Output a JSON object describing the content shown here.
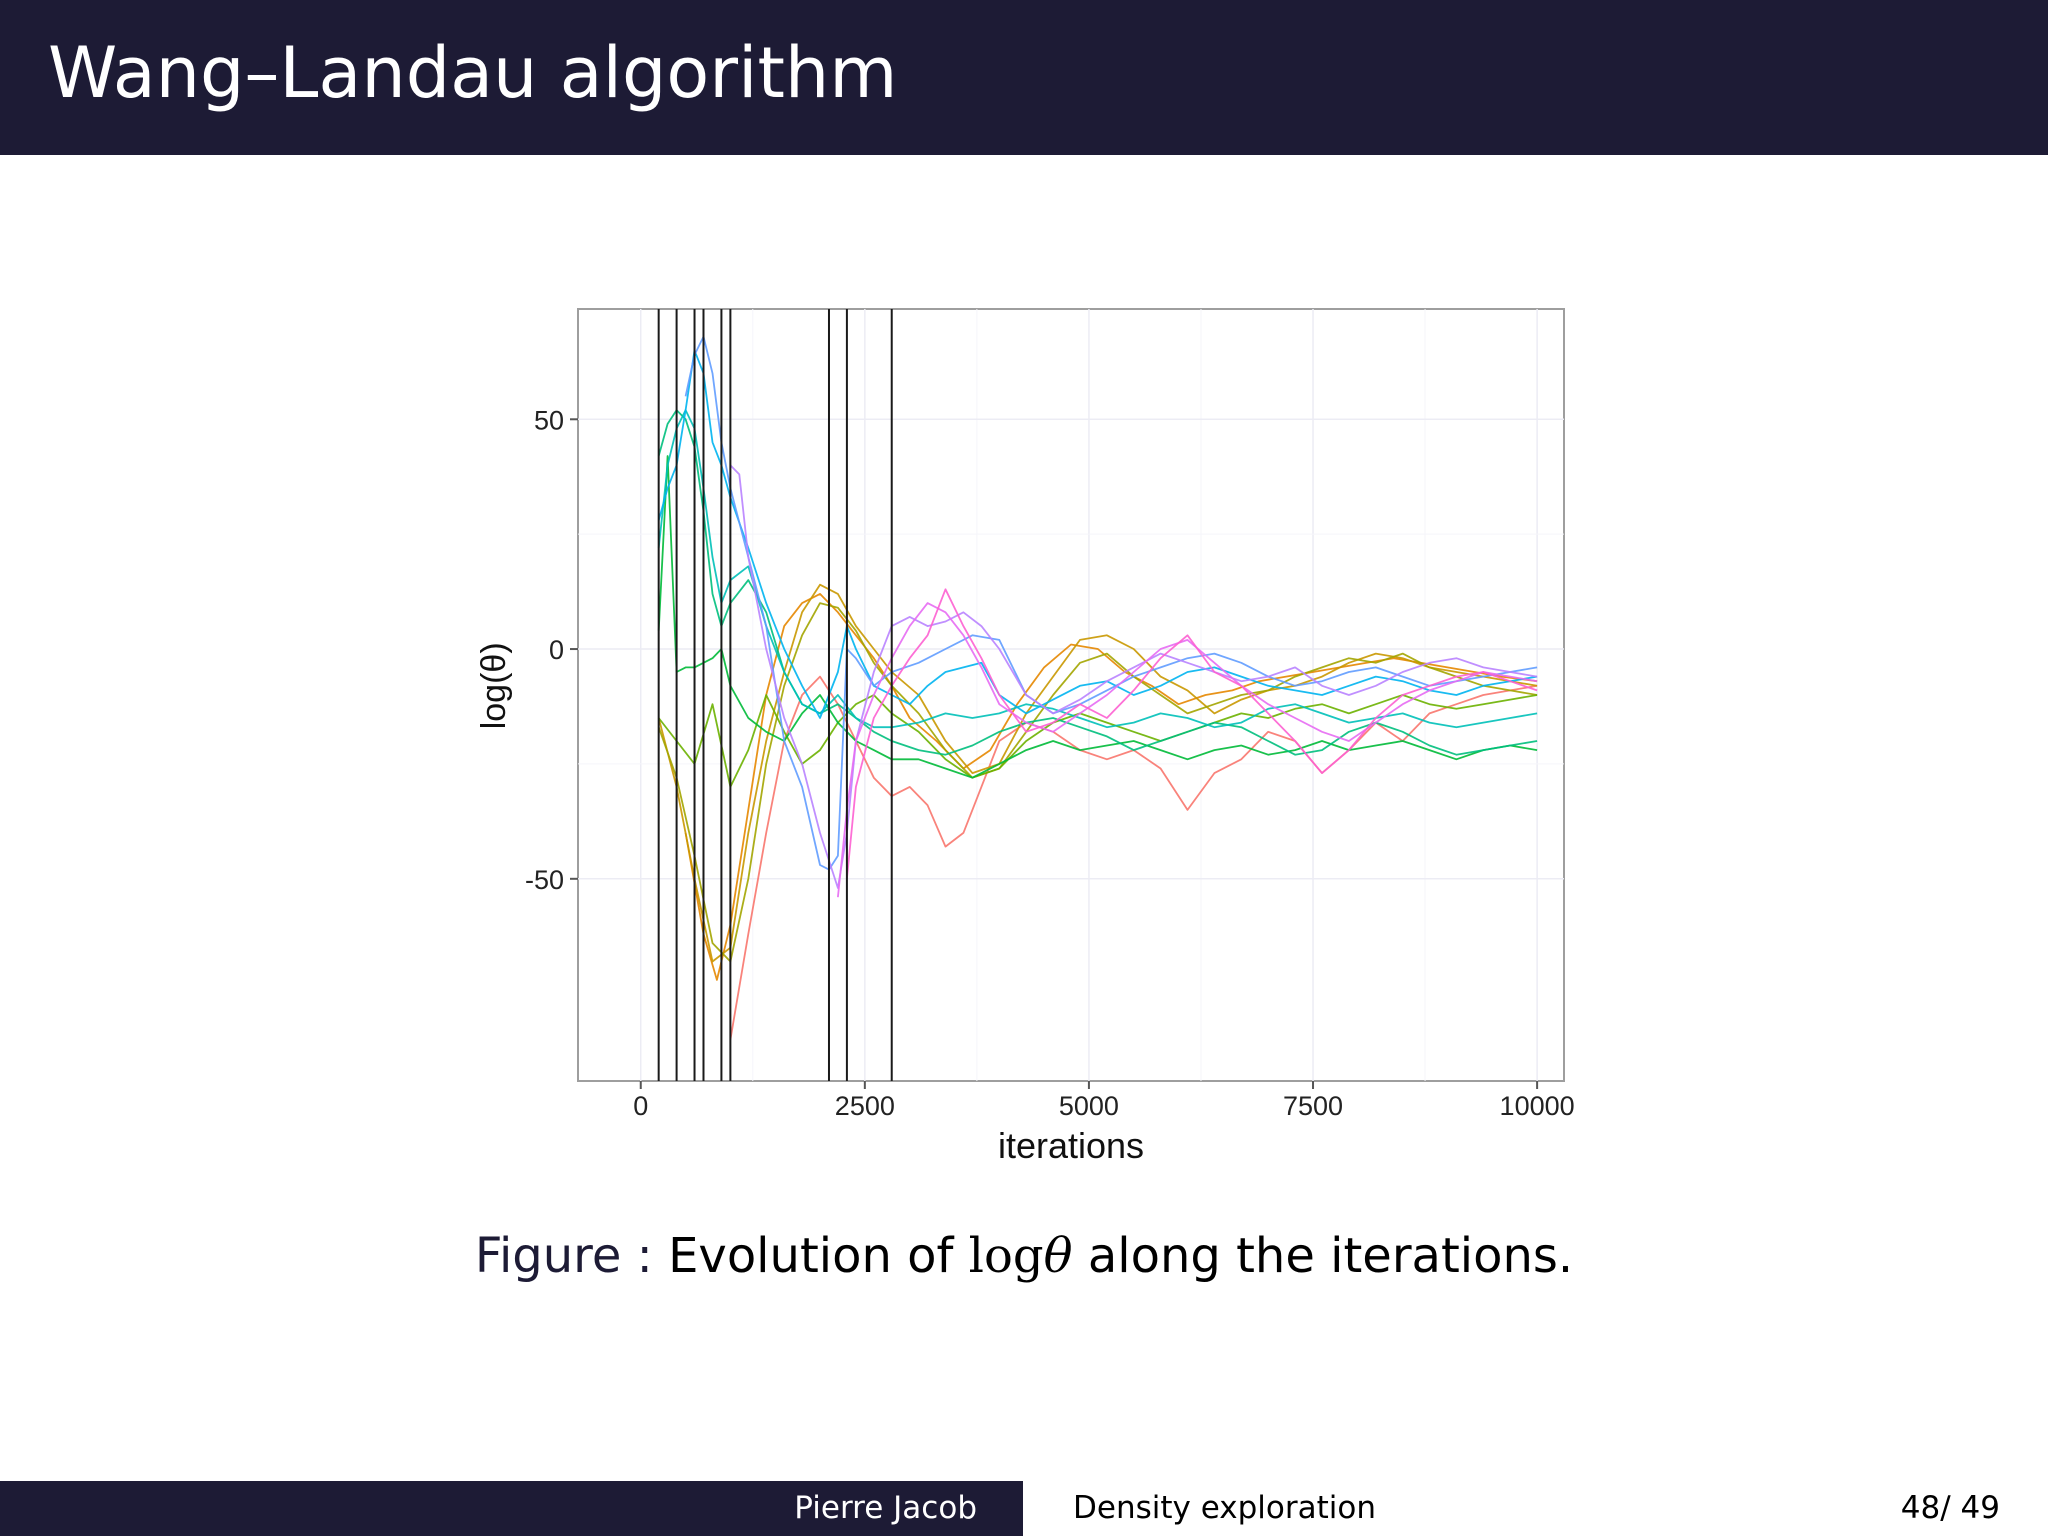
{
  "slide": {
    "title": "Wang–Landau algorithm"
  },
  "caption": {
    "label": "Figure :",
    "text_before": "Evolution of",
    "math_log": "log",
    "math_var": "θ",
    "text_after": "along the iterations."
  },
  "footer": {
    "author": "Pierre Jacob",
    "talk_title": "Density exploration",
    "page_current": "48",
    "page_total": "/ 49"
  },
  "chart_data": {
    "type": "line",
    "xlabel": "iterations",
    "ylabel": "log(θ)",
    "xlim": [
      -700,
      10300
    ],
    "ylim": [
      -94,
      74
    ],
    "xticks": [
      0,
      2500,
      5000,
      7500,
      10000
    ],
    "xtick_labels": [
      "0",
      "2500",
      "5000",
      "7500",
      "10000"
    ],
    "yticks": [
      50,
      0,
      -50
    ],
    "ytick_labels": [
      "50",
      "0",
      "-50"
    ],
    "grid": true,
    "legend": "none",
    "vertical_lines_x": [
      200,
      400,
      600,
      700,
      900,
      1000,
      2100,
      2300,
      2800
    ],
    "series": [
      {
        "color": "#f8766d",
        "x": [
          1000,
          1200,
          1400,
          1600,
          1800,
          2000,
          2200,
          2400,
          2600,
          2800,
          3000,
          3200,
          3400,
          3600,
          3800,
          4000,
          4300,
          4600,
          4900,
          5200,
          5500,
          5800,
          6100,
          6400,
          6700,
          7000,
          7300,
          7600,
          7900,
          8200,
          8500,
          8800,
          9100,
          9400,
          9700,
          10000
        ],
        "y": [
          -85,
          -62,
          -40,
          -20,
          -10,
          -6,
          -12,
          -20,
          -28,
          -32,
          -30,
          -34,
          -43,
          -40,
          -30,
          -20,
          -16,
          -18,
          -22,
          -24,
          -22,
          -26,
          -35,
          -27,
          -24,
          -18,
          -20,
          -27,
          -22,
          -16,
          -20,
          -14,
          -12,
          -10,
          -9,
          -8
        ]
      },
      {
        "color": "#e58700",
        "x": [
          500,
          700,
          850,
          1000,
          1200,
          1400,
          1600,
          1800,
          2000,
          2200,
          2400,
          2600,
          2800,
          3000,
          3300,
          3600,
          3900,
          4200,
          4500,
          4800,
          5100,
          5400,
          5700,
          6000,
          6300,
          6600,
          6900,
          7200,
          7500,
          7800,
          8100,
          8400,
          8700,
          9000,
          9300,
          9600,
          10000
        ],
        "y": [
          -40,
          -62,
          -72,
          -60,
          -35,
          -10,
          5,
          10,
          12,
          8,
          3,
          -2,
          -8,
          -15,
          -20,
          -26,
          -22,
          -12,
          -4,
          1,
          0,
          -5,
          -8,
          -12,
          -10,
          -9,
          -7,
          -6,
          -5,
          -4,
          -3,
          -2,
          -3,
          -4,
          -5,
          -6,
          -7
        ]
      },
      {
        "color": "#c99800",
        "x": [
          200,
          400,
          600,
          800,
          1000,
          1200,
          1400,
          1600,
          1800,
          2000,
          2200,
          2400,
          2600,
          2800,
          3100,
          3400,
          3700,
          4000,
          4300,
          4600,
          4900,
          5200,
          5500,
          5800,
          6100,
          6400,
          6700,
          7000,
          7300,
          7600,
          7900,
          8200,
          8500,
          8800,
          9100,
          9400,
          9700,
          10000
        ],
        "y": [
          -15,
          -30,
          -50,
          -68,
          -65,
          -40,
          -20,
          -5,
          8,
          14,
          12,
          5,
          0,
          -5,
          -10,
          -20,
          -27,
          -25,
          -14,
          -6,
          2,
          3,
          0,
          -6,
          -9,
          -14,
          -11,
          -9,
          -8,
          -6,
          -3,
          -1,
          -2,
          -4,
          -5,
          -6,
          -7,
          -8
        ]
      },
      {
        "color": "#a3a500",
        "x": [
          200,
          400,
          600,
          800,
          1000,
          1200,
          1400,
          1600,
          1800,
          2000,
          2200,
          2400,
          2600,
          2800,
          3100,
          3400,
          3700,
          4000,
          4300,
          4600,
          4900,
          5200,
          5500,
          5800,
          6100,
          6400,
          6700,
          7000,
          7300,
          7600,
          7900,
          8200,
          8500,
          8800,
          9100,
          9400,
          9700,
          10000
        ],
        "y": [
          -17,
          -28,
          -45,
          -64,
          -68,
          -50,
          -25,
          -8,
          3,
          10,
          9,
          4,
          -3,
          -8,
          -14,
          -22,
          -28,
          -26,
          -18,
          -10,
          -3,
          -1,
          -6,
          -10,
          -14,
          -12,
          -10,
          -9,
          -6,
          -4,
          -2,
          -3,
          -1,
          -4,
          -6,
          -8,
          -9,
          -10
        ]
      },
      {
        "color": "#6bb100",
        "x": [
          200,
          400,
          600,
          800,
          1000,
          1200,
          1400,
          1600,
          1800,
          2000,
          2200,
          2400,
          2600,
          2800,
          3100,
          3400,
          3700,
          4000,
          4300,
          4600,
          4900,
          5200,
          5500,
          5800,
          6100,
          6400,
          6700,
          7000,
          7300,
          7600,
          7900,
          8200,
          8500,
          8800,
          9100,
          9400,
          9700,
          10000
        ],
        "y": [
          -15,
          -20,
          -25,
          -12,
          -30,
          -22,
          -10,
          -18,
          -25,
          -22,
          -16,
          -12,
          -10,
          -14,
          -18,
          -24,
          -28,
          -26,
          -20,
          -16,
          -14,
          -16,
          -18,
          -20,
          -18,
          -16,
          -14,
          -15,
          -13,
          -12,
          -14,
          -12,
          -10,
          -12,
          -13,
          -12,
          -11,
          -10
        ]
      },
      {
        "color": "#00ba38",
        "x": [
          200,
          300,
          400,
          500,
          600,
          700,
          800,
          900,
          1000,
          1200,
          1400,
          1600,
          1800,
          2000,
          2200,
          2400,
          2600,
          2800,
          3100,
          3400,
          3700,
          4000,
          4300,
          4600,
          4900,
          5200,
          5500,
          5800,
          6100,
          6400,
          6700,
          7000,
          7300,
          7600,
          7900,
          8200,
          8500,
          8800,
          9100,
          9400,
          9700,
          10000
        ],
        "y": [
          4,
          42,
          -5,
          -4,
          -4,
          -3,
          -2,
          0,
          -8,
          -15,
          -18,
          -20,
          -14,
          -10,
          -16,
          -20,
          -22,
          -24,
          -24,
          -26,
          -28,
          -25,
          -22,
          -20,
          -22,
          -21,
          -20,
          -22,
          -24,
          -22,
          -21,
          -23,
          -22,
          -20,
          -22,
          -21,
          -20,
          -22,
          -24,
          -22,
          -21,
          -22
        ]
      },
      {
        "color": "#00bf7d",
        "x": [
          200,
          300,
          400,
          500,
          600,
          700,
          800,
          900,
          1000,
          1200,
          1400,
          1600,
          1800,
          2000,
          2200,
          2400,
          2600,
          2800,
          3100,
          3400,
          3700,
          4000,
          4300,
          4600,
          4900,
          5200,
          5500,
          5800,
          6100,
          6400,
          6700,
          7000,
          7300,
          7600,
          7900,
          8200,
          8500,
          8800,
          9100,
          9400,
          9700,
          10000
        ],
        "y": [
          42,
          49,
          52,
          50,
          44,
          30,
          12,
          5,
          10,
          15,
          8,
          -5,
          -12,
          -14,
          -12,
          -15,
          -18,
          -20,
          -22,
          -23,
          -21,
          -18,
          -16,
          -15,
          -17,
          -19,
          -22,
          -20,
          -18,
          -16,
          -17,
          -20,
          -23,
          -22,
          -18,
          -16,
          -18,
          -21,
          -23,
          -22,
          -21,
          -20
        ]
      },
      {
        "color": "#00c0b8",
        "x": [
          200,
          300,
          400,
          500,
          600,
          700,
          800,
          900,
          1000,
          1200,
          1400,
          1600,
          1800,
          2000,
          2200,
          2400,
          2600,
          2800,
          3100,
          3400,
          3700,
          4000,
          4300,
          4600,
          4900,
          5200,
          5500,
          5800,
          6100,
          6400,
          6700,
          7000,
          7300,
          7600,
          7900,
          8200,
          8500,
          8800,
          9100,
          9400,
          9700,
          10000
        ],
        "y": [
          22,
          40,
          48,
          52,
          48,
          35,
          20,
          10,
          15,
          18,
          5,
          -5,
          -12,
          -14,
          -10,
          -15,
          -17,
          -17,
          -16,
          -14,
          -15,
          -14,
          -12,
          -13,
          -15,
          -17,
          -16,
          -14,
          -15,
          -17,
          -16,
          -13,
          -12,
          -14,
          -16,
          -15,
          -14,
          -16,
          -17,
          -16,
          -15,
          -14
        ]
      },
      {
        "color": "#00b4ef",
        "x": [
          200,
          300,
          400,
          500,
          600,
          700,
          800,
          900,
          1000,
          1200,
          1400,
          1600,
          1800,
          2000,
          2200,
          2300,
          2400,
          2600,
          2800,
          3000,
          3200,
          3400,
          3600,
          3800,
          4000,
          4300,
          4600,
          4900,
          5200,
          5500,
          5800,
          6100,
          6400,
          6700,
          7000,
          7300,
          7600,
          7900,
          8200,
          8500,
          8800,
          9100,
          9400,
          9700,
          10000
        ],
        "y": [
          28,
          35,
          40,
          52,
          65,
          60,
          45,
          40,
          33,
          22,
          10,
          0,
          -8,
          -15,
          -5,
          5,
          0,
          -8,
          -10,
          -12,
          -8,
          -5,
          -4,
          -3,
          -10,
          -14,
          -11,
          -8,
          -7,
          -10,
          -8,
          -5,
          -4,
          -6,
          -8,
          -9,
          -10,
          -8,
          -6,
          -7,
          -9,
          -10,
          -8,
          -7,
          -6
        ]
      },
      {
        "color": "#619cff",
        "x": [
          500,
          600,
          700,
          800,
          900,
          1000,
          1200,
          1400,
          1600,
          1800,
          2000,
          2100,
          2200,
          2300,
          2400,
          2600,
          2800,
          3100,
          3400,
          3700,
          4000,
          4300,
          4600,
          4900,
          5200,
          5500,
          5800,
          6100,
          6400,
          6700,
          7000,
          7300,
          7600,
          7900,
          8200,
          8500,
          8800,
          9100,
          9400,
          9700,
          10000
        ],
        "y": [
          55,
          64,
          68,
          60,
          45,
          35,
          20,
          5,
          -20,
          -30,
          -47,
          -48,
          -45,
          0,
          -2,
          -8,
          -5,
          -3,
          0,
          3,
          2,
          -10,
          -14,
          -12,
          -9,
          -6,
          -4,
          -2,
          -1,
          -3,
          -6,
          -8,
          -7,
          -5,
          -4,
          -6,
          -8,
          -7,
          -6,
          -5,
          -4
        ]
      },
      {
        "color": "#b983ff",
        "x": [
          1000,
          1100,
          1200,
          1400,
          1600,
          1800,
          2000,
          2200,
          2300,
          2400,
          2600,
          2800,
          3000,
          3200,
          3400,
          3600,
          3800,
          4000,
          4300,
          4600,
          4900,
          5200,
          5500,
          5800,
          6100,
          6400,
          6700,
          7000,
          7300,
          7600,
          7900,
          8200,
          8500,
          8800,
          9100,
          9400,
          9700,
          10000
        ],
        "y": [
          40,
          38,
          20,
          0,
          -15,
          -25,
          -40,
          -52,
          -40,
          -20,
          -5,
          5,
          7,
          5,
          6,
          8,
          5,
          0,
          -10,
          -14,
          -11,
          -7,
          -4,
          -1,
          -3,
          -5,
          -7,
          -6,
          -4,
          -8,
          -10,
          -8,
          -5,
          -3,
          -2,
          -4,
          -5,
          -6
        ]
      },
      {
        "color": "#e76bf3",
        "x": [
          2200,
          2300,
          2400,
          2600,
          2800,
          3000,
          3200,
          3400,
          3600,
          3800,
          4000,
          4300,
          4600,
          4900,
          5200,
          5500,
          5800,
          6100,
          6400,
          6700,
          7000,
          7300,
          7600,
          7900,
          8200,
          8500,
          8800,
          9100,
          9400,
          9700,
          10000
        ],
        "y": [
          -54,
          -35,
          -20,
          -10,
          -2,
          5,
          10,
          8,
          3,
          -4,
          -12,
          -16,
          -18,
          -14,
          -10,
          -5,
          0,
          2,
          -3,
          -8,
          -12,
          -15,
          -18,
          -20,
          -16,
          -12,
          -9,
          -7,
          -5,
          -6,
          -7
        ]
      },
      {
        "color": "#fd61d1",
        "x": [
          2300,
          2400,
          2600,
          2800,
          3000,
          3200,
          3400,
          3600,
          3800,
          4000,
          4300,
          4600,
          4900,
          5200,
          5500,
          5800,
          6100,
          6400,
          6700,
          7000,
          7300,
          7600,
          7900,
          8200,
          8500,
          8800,
          9100,
          9400,
          9700,
          10000
        ],
        "y": [
          -50,
          -30,
          -15,
          -8,
          -2,
          3,
          13,
          5,
          -2,
          -10,
          -18,
          -16,
          -12,
          -15,
          -9,
          -2,
          3,
          -5,
          -8,
          -14,
          -20,
          -27,
          -22,
          -15,
          -10,
          -8,
          -6,
          -5,
          -7,
          -9
        ]
      }
    ]
  }
}
